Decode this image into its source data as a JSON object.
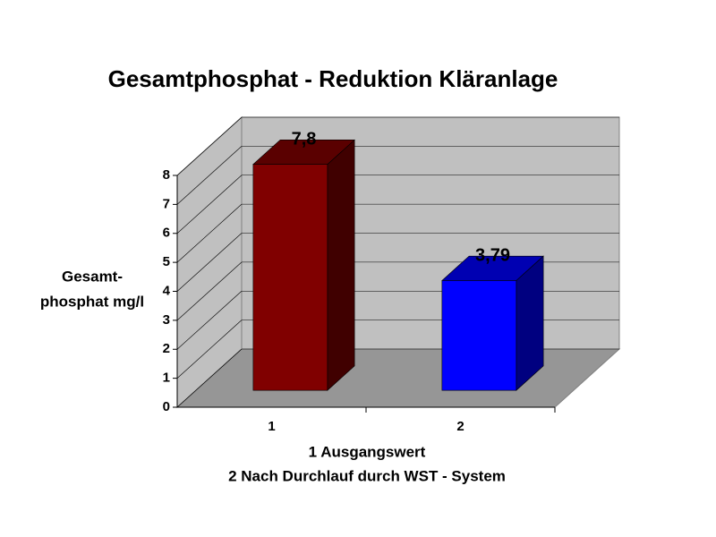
{
  "chart_data": {
    "type": "bar3d",
    "title": "Gesamtphosphat - Reduktion Kläranlage",
    "y_label": [
      "Gesamt-",
      "phosphat mg/l"
    ],
    "x_label": [
      "1  Ausgangswert",
      "2  Nach Durchlauf durch WST - System"
    ],
    "categories": [
      "1",
      "2"
    ],
    "values": [
      7.8,
      3.79
    ],
    "value_labels": [
      "7,8",
      "3,79"
    ],
    "colors": [
      "#800000",
      "#0000ff"
    ],
    "ylim": [
      0,
      8
    ],
    "yticks": [
      0,
      1,
      2,
      3,
      4,
      5,
      6,
      7,
      8
    ],
    "grid": true
  }
}
